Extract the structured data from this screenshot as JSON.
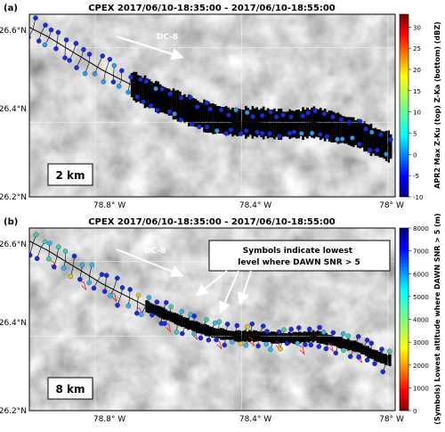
{
  "figure_title": "CPEX 2017/06/10-18:35:00 - 2017/06/10-18:55:00",
  "chart_data": [
    {
      "type": "map",
      "panel_label": "(a)",
      "title": "CPEX   2017/06/10-18:35:00 -  2017/06/10-18:55:00",
      "x_ticks": [
        "78.8° W",
        "78.4° W",
        "78° W"
      ],
      "y_ticks": [
        "26.6°N",
        "26.4°N",
        "26.2°N"
      ],
      "x_range_deg_w": [
        78.98,
        77.98
      ],
      "y_range_deg_n": [
        26.2,
        26.69
      ],
      "grid": true,
      "scale_label": "2 km",
      "aircraft_label": "DC-8",
      "colorbar": {
        "label": "APR2 Max Z-Ku (top) Z-Ka (bottom) (dBZ)",
        "ticks": [
          "30",
          "25",
          "20",
          "15",
          "10",
          "5",
          "0",
          "-5",
          "-10"
        ],
        "range": [
          -10,
          33
        ],
        "colormap": "jet"
      },
      "flight_track": [
        [
          78.98,
          26.655
        ],
        [
          78.93,
          26.63
        ],
        [
          78.88,
          26.6
        ],
        [
          78.83,
          26.57
        ],
        [
          78.78,
          26.54
        ],
        [
          78.72,
          26.51
        ],
        [
          78.66,
          26.48
        ],
        [
          78.6,
          26.455
        ],
        [
          78.54,
          26.43
        ],
        [
          78.48,
          26.41
        ],
        [
          78.42,
          26.4
        ],
        [
          78.36,
          26.4
        ],
        [
          78.3,
          26.395
        ],
        [
          78.25,
          26.395
        ],
        [
          78.2,
          26.4
        ],
        [
          78.16,
          26.39
        ],
        [
          78.12,
          26.38
        ],
        [
          78.08,
          26.37
        ],
        [
          78.04,
          26.35
        ],
        [
          78.0,
          26.335
        ]
      ]
    },
    {
      "type": "map",
      "panel_label": "(b)",
      "title": "CPEX   2017/06/10-18:35:00 -  2017/06/10-18:55:00",
      "x_ticks": [
        "78.8° W",
        "78.4° W",
        "78° W"
      ],
      "y_ticks": [
        "26.6°N",
        "26.4°N",
        "26.2°N"
      ],
      "x_range_deg_w": [
        78.98,
        77.98
      ],
      "y_range_deg_n": [
        26.2,
        26.69
      ],
      "grid": true,
      "scale_label": "8 km",
      "aircraft_label": "DC-8",
      "annotation": "Symbols indicate lowest level where DAWN SNR > 5",
      "colorbar": {
        "label": "(Symbols) Lowest altitude where DAWN SNR > 5 (m)",
        "ticks": [
          "8000",
          "7000",
          "6000",
          "5000",
          "4000",
          "3000",
          "2000",
          "1000",
          "0"
        ],
        "range": [
          0,
          8000
        ],
        "colormap": "jet"
      }
    }
  ]
}
